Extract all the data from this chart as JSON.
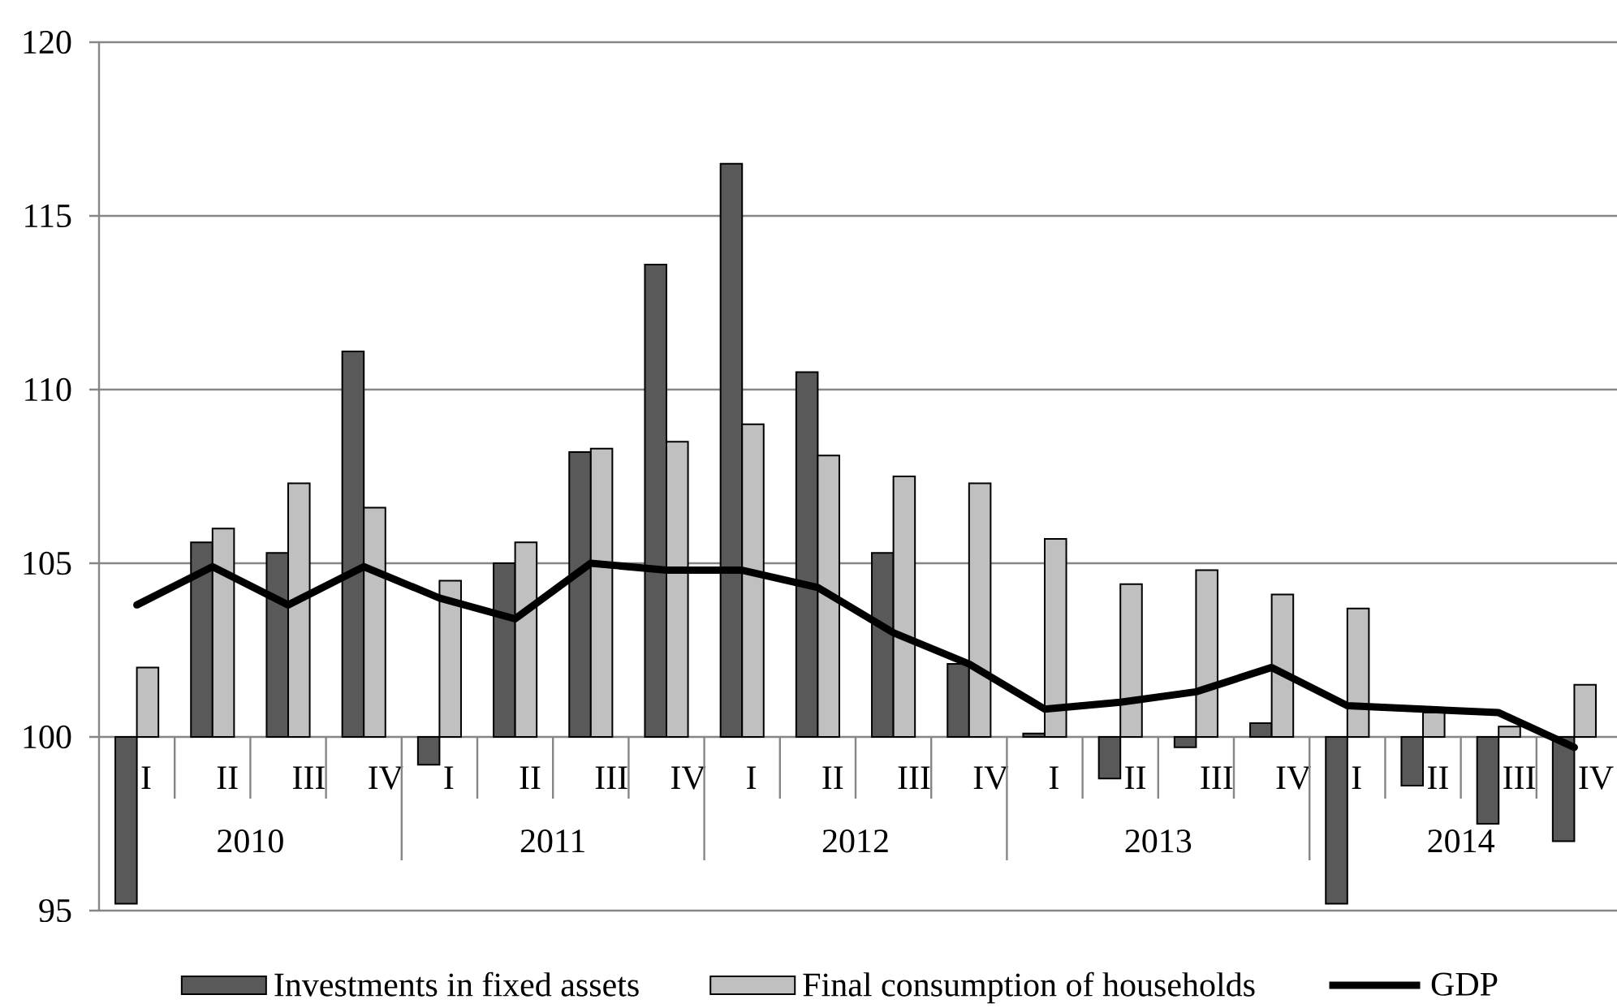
{
  "chart_data": {
    "type": "bar",
    "categories": [
      "I",
      "II",
      "III",
      "IV",
      "I",
      "II",
      "III",
      "IV",
      "I",
      "II",
      "III",
      "IV",
      "I",
      "II",
      "III",
      "IV",
      "I",
      "II",
      "III",
      "IV"
    ],
    "annotations": [
      "2010",
      "2011",
      "2012",
      "2013",
      "2014"
    ],
    "ylim": [
      95,
      120
    ],
    "yticks": [
      95,
      100,
      105,
      110,
      115,
      120
    ],
    "grid": "y",
    "legend": "bottom",
    "series": [
      {
        "name": "Investments in fixed assets",
        "color": "#595959",
        "base": [
          100,
          100,
          100,
          100,
          100,
          100,
          100,
          100,
          100,
          100,
          100,
          100,
          100,
          100,
          100,
          100,
          100,
          100,
          100,
          100
        ],
        "values": [
          -4.8,
          5.6,
          5.3,
          11.1,
          -0.8,
          5.0,
          8.2,
          13.6,
          16.5,
          10.5,
          5.3,
          2.1,
          0.1,
          -1.2,
          -0.3,
          0.4,
          -4.8,
          -1.4,
          -2.5,
          -3.0
        ]
      },
      {
        "name": "Final consumption of households",
        "color": "#c0c0c0",
        "base": [
          100,
          100,
          100,
          100,
          100,
          100,
          100,
          100,
          100,
          100,
          100,
          100,
          100,
          100,
          100,
          100,
          100,
          100,
          100,
          100
        ],
        "values": [
          2.0,
          6.0,
          7.3,
          6.6,
          4.5,
          5.6,
          8.3,
          8.5,
          9.0,
          8.1,
          7.5,
          7.3,
          5.7,
          4.4,
          4.8,
          4.1,
          3.7,
          0.7,
          0.3,
          1.5
        ]
      },
      {
        "name": "GDP",
        "type": "line",
        "color": "#000000",
        "values": [
          103.8,
          104.9,
          103.8,
          104.9,
          104.0,
          103.4,
          105.0,
          104.8,
          104.8,
          104.3,
          103.0,
          102.1,
          100.8,
          101.0,
          101.3,
          102.0,
          100.9,
          100.8,
          100.7,
          99.7
        ]
      }
    ]
  }
}
